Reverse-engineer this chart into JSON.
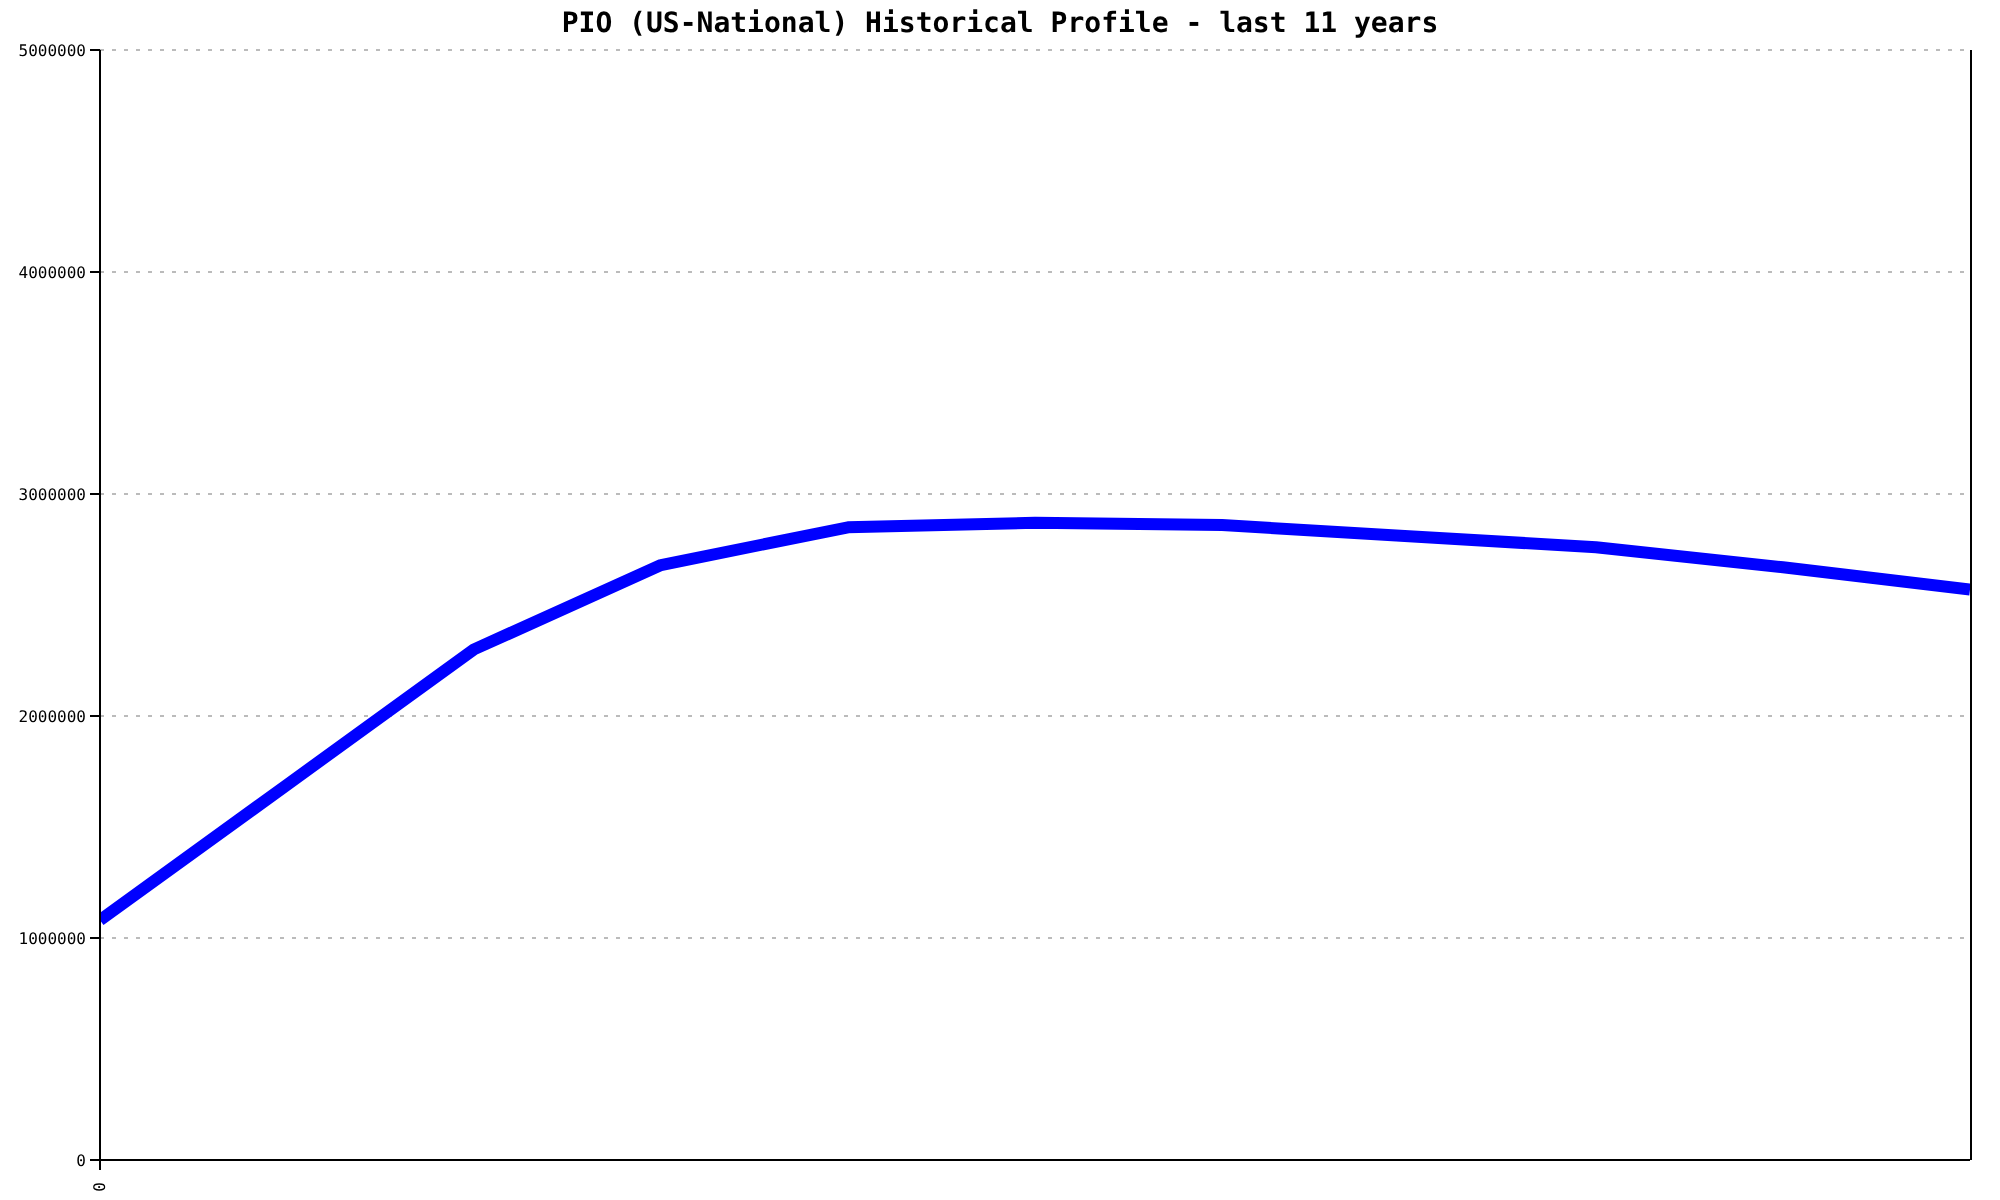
{
  "chart_data": {
    "type": "line",
    "title": "PIO (US-National) Historical Profile - last 11 years",
    "categories": [
      "0",
      null,
      null,
      null,
      null,
      null,
      null,
      null,
      null,
      null,
      null
    ],
    "series": [
      {
        "color": "#0000ff",
        "values": [
          1080000,
          1690000,
          2300000,
          2680000,
          2850000,
          2870000,
          2860000,
          2810000,
          2760000,
          2670000,
          2570000
        ]
      }
    ],
    "ylim": [
      0,
      5000000
    ],
    "yticks": [
      0,
      1000000,
      2000000,
      3000000,
      4000000,
      5000000
    ],
    "grid": "y",
    "legend": false,
    "marker": "none",
    "line_style": "solid"
  }
}
